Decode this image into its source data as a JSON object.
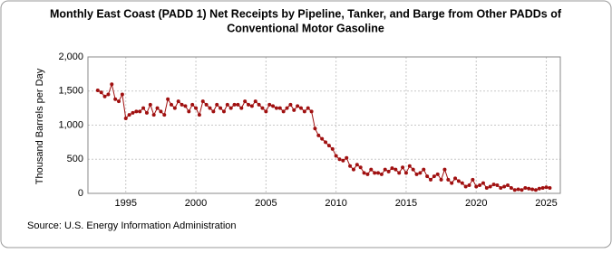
{
  "chart_data": {
    "type": "line",
    "title": "Monthly East Coast (PADD 1) Net Receipts by Pipeline, Tanker, and Barge from Other PADDs of",
    "title_line2": "Conventional Motor Gasoline",
    "y_label": "Thousand Barrels per Day",
    "source": "Source: U.S. Energy Information Administration",
    "color": "#a01010",
    "grid": true,
    "xlim": [
      1992.3,
      2026
    ],
    "xticks": [
      1995,
      2000,
      2005,
      2010,
      2015,
      2020,
      2025
    ],
    "ylim": [
      0,
      2000
    ],
    "yticks": [
      0,
      500,
      {
        "value": 1000,
        "label": "1,000"
      },
      {
        "value": 1500,
        "label": "1,500"
      },
      {
        "value": 2000,
        "label": "2,000"
      }
    ],
    "x": [
      1993,
      1993.25,
      1993.5,
      1993.75,
      1994,
      1994.25,
      1994.5,
      1994.75,
      1995,
      1995.25,
      1995.5,
      1995.75,
      1996,
      1996.25,
      1996.5,
      1996.75,
      1997,
      1997.25,
      1997.5,
      1997.75,
      1998,
      1998.25,
      1998.5,
      1998.75,
      1999,
      1999.25,
      1999.5,
      1999.75,
      2000,
      2000.25,
      2000.5,
      2000.75,
      2001,
      2001.25,
      2001.5,
      2001.75,
      2002,
      2002.25,
      2002.5,
      2002.75,
      2003,
      2003.25,
      2003.5,
      2003.75,
      2004,
      2004.25,
      2004.5,
      2004.75,
      2005,
      2005.25,
      2005.5,
      2005.75,
      2006,
      2006.25,
      2006.5,
      2006.75,
      2007,
      2007.25,
      2007.5,
      2007.75,
      2008,
      2008.25,
      2008.5,
      2008.75,
      2009,
      2009.25,
      2009.5,
      2009.75,
      2010,
      2010.25,
      2010.5,
      2010.75,
      2011,
      2011.25,
      2011.5,
      2011.75,
      2012,
      2012.25,
      2012.5,
      2012.75,
      2013,
      2013.25,
      2013.5,
      2013.75,
      2014,
      2014.25,
      2014.5,
      2014.75,
      2015,
      2015.25,
      2015.5,
      2015.75,
      2016,
      2016.25,
      2016.5,
      2016.75,
      2017,
      2017.25,
      2017.5,
      2017.75,
      2018,
      2018.25,
      2018.5,
      2018.75,
      2019,
      2019.25,
      2019.5,
      2019.75,
      2020,
      2020.25,
      2020.5,
      2020.75,
      2021,
      2021.25,
      2021.5,
      2021.75,
      2022,
      2022.25,
      2022.5,
      2022.75,
      2023,
      2023.25,
      2023.5,
      2023.75,
      2024,
      2024.25,
      2024.5,
      2024.75,
      2025,
      2025.25
    ],
    "values": [
      1510,
      1480,
      1420,
      1450,
      1600,
      1380,
      1350,
      1450,
      1100,
      1150,
      1180,
      1200,
      1200,
      1250,
      1180,
      1300,
      1150,
      1250,
      1200,
      1150,
      1380,
      1300,
      1250,
      1350,
      1300,
      1280,
      1200,
      1300,
      1250,
      1150,
      1350,
      1300,
      1250,
      1200,
      1300,
      1250,
      1200,
      1300,
      1250,
      1300,
      1300,
      1250,
      1350,
      1300,
      1280,
      1350,
      1300,
      1250,
      1200,
      1300,
      1280,
      1250,
      1250,
      1200,
      1250,
      1300,
      1220,
      1280,
      1250,
      1200,
      1250,
      1200,
      950,
      850,
      800,
      750,
      700,
      650,
      550,
      500,
      480,
      520,
      400,
      350,
      420,
      380,
      300,
      280,
      350,
      300,
      300,
      280,
      350,
      320,
      370,
      350,
      300,
      380,
      300,
      400,
      350,
      280,
      300,
      350,
      250,
      200,
      250,
      280,
      200,
      350,
      200,
      150,
      220,
      180,
      150,
      100,
      120,
      200,
      100,
      120,
      150,
      80,
      100,
      130,
      120,
      80,
      100,
      120,
      80,
      50,
      60,
      50,
      80,
      70,
      60,
      50,
      70,
      80,
      90,
      80
    ]
  }
}
